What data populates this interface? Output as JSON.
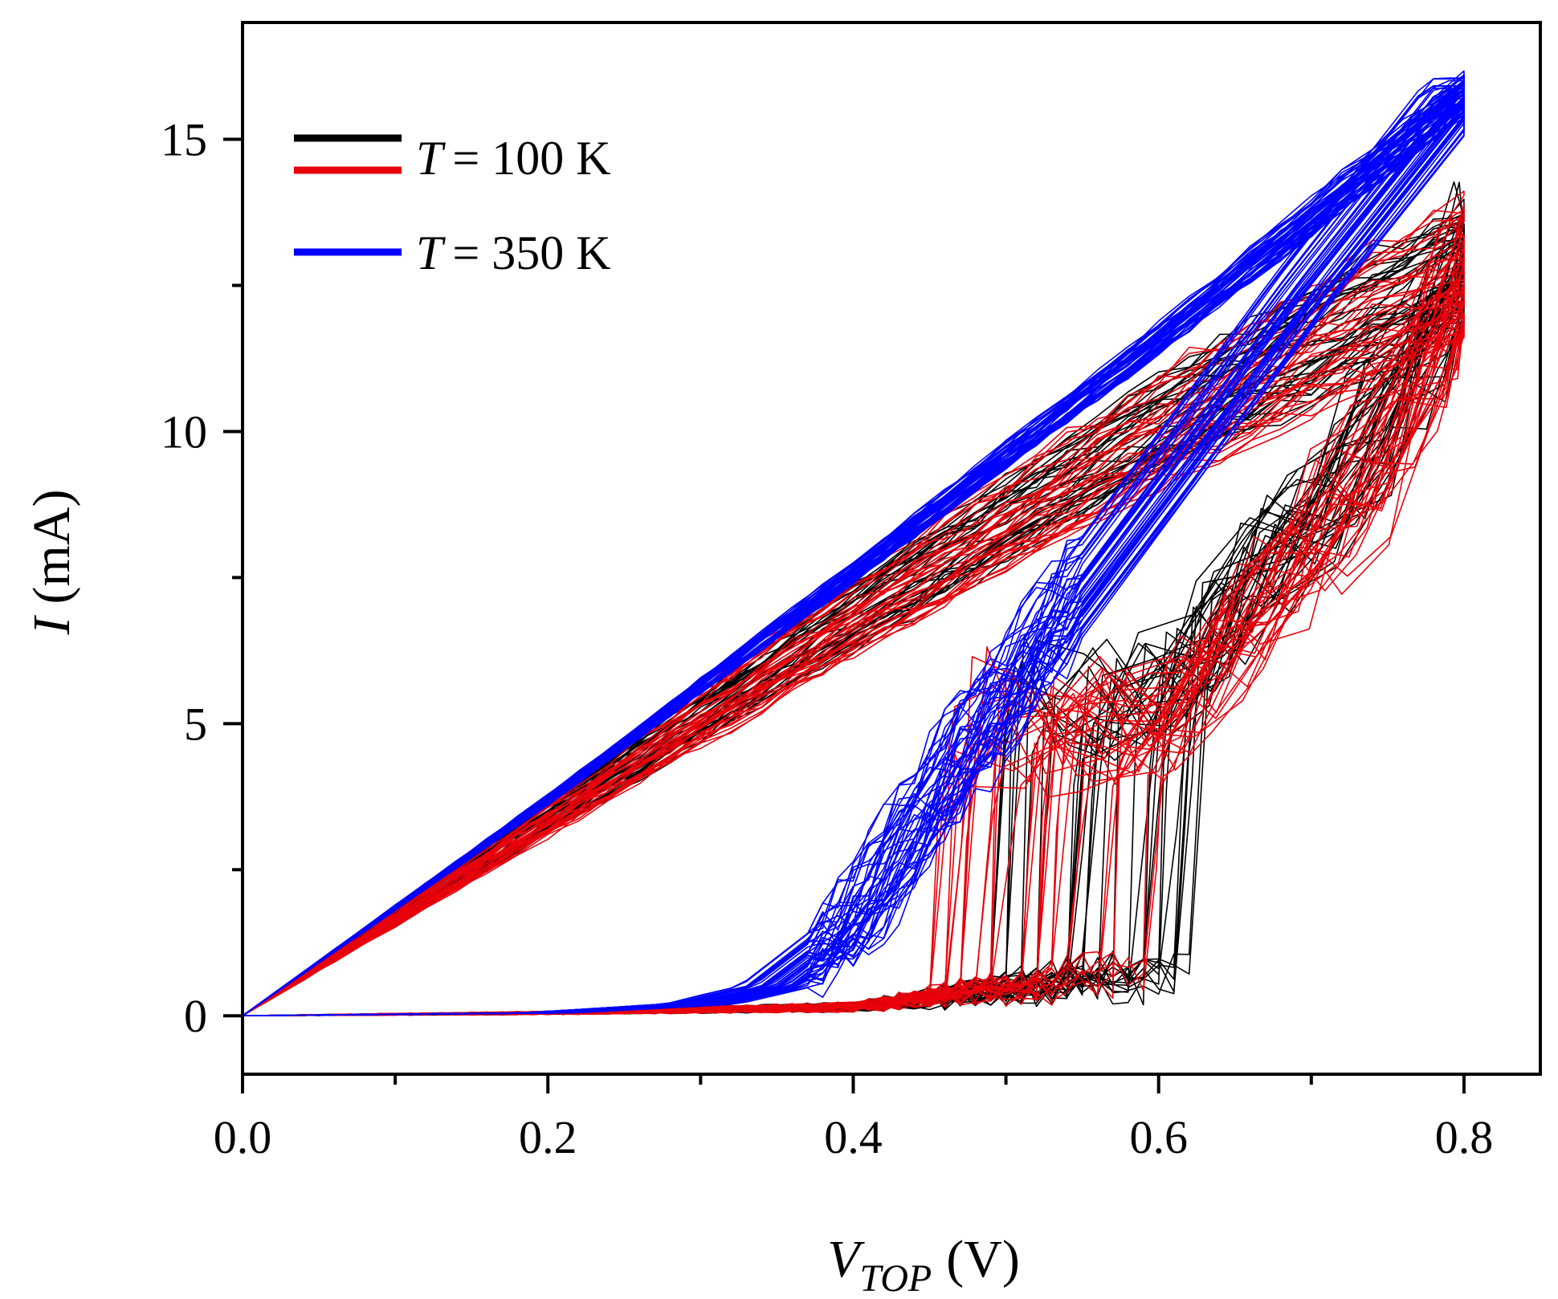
{
  "chart_data": {
    "type": "line",
    "title": "",
    "xlabel": {
      "base": "V",
      "sub": "TOP",
      "unit": "(V)"
    },
    "ylabel": {
      "base": "I",
      "unit": "(mA)"
    },
    "xlim": [
      0,
      0.85
    ],
    "ylim": [
      -1,
      17
    ],
    "xticks": [
      {
        "value": 0.0,
        "label": "0.0"
      },
      {
        "value": 0.2,
        "label": "0.2"
      },
      {
        "value": 0.4,
        "label": "0.4"
      },
      {
        "value": 0.6,
        "label": "0.6"
      },
      {
        "value": 0.8,
        "label": "0.8"
      }
    ],
    "yticks": [
      {
        "value": 0,
        "label": "0"
      },
      {
        "value": 5,
        "label": "5"
      },
      {
        "value": 10,
        "label": "10"
      },
      {
        "value": 15,
        "label": "15"
      }
    ],
    "x_minor_ticks": [
      0.1,
      0.3,
      0.5,
      0.7
    ],
    "y_minor_ticks": [
      2.5,
      7.5,
      12.5
    ],
    "grid": false,
    "legend": {
      "position": "top-left",
      "entries": [
        {
          "prefix": "T",
          "text": "= 100 K",
          "colors": [
            "#000000",
            "#e8000b"
          ]
        },
        {
          "prefix": "T",
          "text": "= 350 K",
          "colors": [
            "#0000ff"
          ]
        }
      ]
    },
    "series": [
      {
        "name": "T = 100 K (black)",
        "color": "#000000",
        "cycles": 35,
        "sweep_up": {
          "off_state_x": [
            0.0,
            0.2,
            0.4,
            0.5,
            0.575
          ],
          "off_state_y": [
            0.0,
            0.05,
            0.15,
            0.25,
            0.3
          ],
          "switch_voltage_range": [
            0.48,
            0.63
          ],
          "post_switch_points_x": [
            0.6,
            0.7,
            0.75,
            0.8
          ],
          "post_switch_points_y": [
            5.5,
            8.5,
            10.0,
            12.5
          ],
          "max_current_range": [
            11.8,
            13.9
          ]
        },
        "sweep_down": {
          "x": [
            0.8,
            0.6,
            0.4,
            0.2,
            0.0
          ],
          "y": [
            12.2,
            9.6,
            6.5,
            3.2,
            0.0
          ]
        }
      },
      {
        "name": "T = 100 K (red)",
        "color": "#e8000b",
        "cycles": 35,
        "sweep_up": {
          "off_state_x": [
            0.0,
            0.2,
            0.4,
            0.5,
            0.575
          ],
          "off_state_y": [
            0.0,
            0.05,
            0.15,
            0.25,
            0.3
          ],
          "switch_voltage_range": [
            0.45,
            0.6
          ],
          "post_switch_points_x": [
            0.6,
            0.7,
            0.75,
            0.8
          ],
          "post_switch_points_y": [
            5.0,
            8.0,
            9.5,
            12.5
          ],
          "max_current_range": [
            11.4,
            14.1
          ]
        },
        "sweep_down": {
          "x": [
            0.8,
            0.6,
            0.4,
            0.2,
            0.0
          ],
          "y": [
            12.8,
            10.0,
            6.8,
            3.4,
            0.0
          ]
        }
      },
      {
        "name": "T = 350 K",
        "color": "#0000ff",
        "cycles": 45,
        "sweep_up": {
          "x": [
            0.0,
            0.2,
            0.3,
            0.35,
            0.4,
            0.45,
            0.5,
            0.6,
            0.7,
            0.8
          ],
          "y": [
            0.0,
            0.05,
            0.2,
            0.5,
            1.5,
            3.5,
            5.5,
            9.0,
            12.5,
            15.8
          ]
        },
        "sweep_down": {
          "x": [
            0.8,
            0.6,
            0.4,
            0.2,
            0.0
          ],
          "y": [
            15.8,
            11.6,
            7.6,
            3.7,
            0.0
          ]
        }
      }
    ]
  }
}
